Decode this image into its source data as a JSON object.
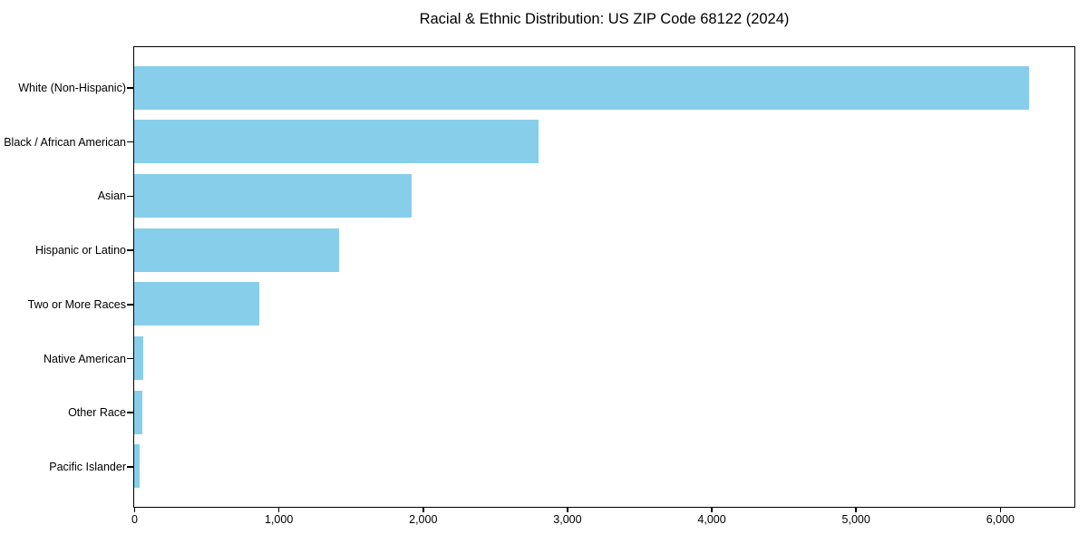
{
  "title": "Racial & Ethnic Distribution: US ZIP Code 68122 (2024)",
  "colors": {
    "bar": "#87CEEB",
    "axis": "#000000",
    "text": "#000000",
    "background": "#ffffff"
  },
  "chart_data": {
    "type": "bar",
    "orientation": "horizontal",
    "title": "Racial & Ethnic Distribution: US ZIP Code 68122 (2024)",
    "categories": [
      "White (Non-Hispanic)",
      "Black / African American",
      "Asian",
      "Hispanic or Latino",
      "Two or More Races",
      "Native American",
      "Other Race",
      "Pacific Islander"
    ],
    "values": [
      6200,
      2800,
      1920,
      1420,
      870,
      65,
      55,
      35
    ],
    "xlabel": "",
    "ylabel": "",
    "xlim": [
      0,
      6510
    ],
    "x_ticks": [
      0,
      1000,
      2000,
      3000,
      4000,
      5000,
      6000
    ],
    "x_tick_labels": [
      "0",
      "1,000",
      "2,000",
      "3,000",
      "4,000",
      "5,000",
      "6,000"
    ],
    "grid": false,
    "legend": null,
    "bar_color": "#87CEEB"
  }
}
